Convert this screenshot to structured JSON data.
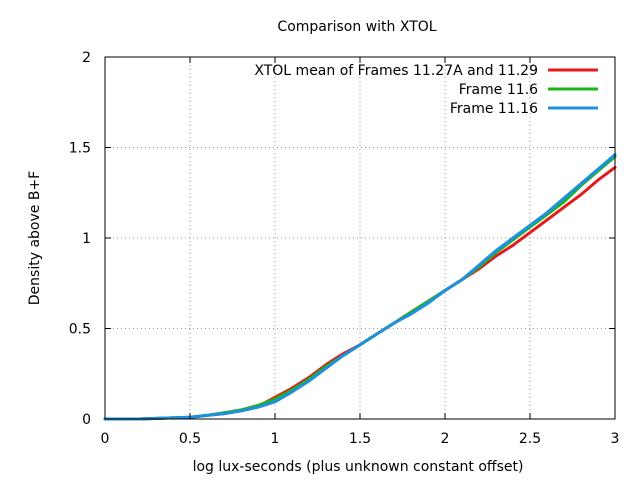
{
  "chart_data": {
    "type": "line",
    "title": "Comparison with XTOL",
    "xlabel": "log lux-seconds (plus unknown constant offset)",
    "ylabel": "Density above B+F",
    "xlim": [
      0,
      3
    ],
    "ylim": [
      0,
      2
    ],
    "x_ticks": [
      "0",
      "0.5",
      "1",
      "1.5",
      "2",
      "2.5",
      "3"
    ],
    "y_ticks": [
      "0",
      "0.5",
      "1",
      "1.5",
      "2"
    ],
    "grid": true,
    "legend_position": "top-right",
    "series": [
      {
        "name": "XTOL mean of Frames 11.27A and 11.29",
        "color": "#e41a1c",
        "x": [
          0,
          0.2,
          0.35,
          0.5,
          0.6,
          0.7,
          0.8,
          0.9,
          1.0,
          1.1,
          1.2,
          1.3,
          1.4,
          1.5,
          1.6,
          1.7,
          1.8,
          1.9,
          2.0,
          2.1,
          2.2,
          2.3,
          2.4,
          2.5,
          2.6,
          2.7,
          2.8,
          2.9,
          3.0
        ],
        "y": [
          0,
          0,
          0.005,
          0.01,
          0.02,
          0.03,
          0.045,
          0.07,
          0.12,
          0.17,
          0.23,
          0.3,
          0.36,
          0.41,
          0.47,
          0.53,
          0.59,
          0.65,
          0.71,
          0.77,
          0.83,
          0.9,
          0.96,
          1.03,
          1.1,
          1.17,
          1.24,
          1.32,
          1.39
        ]
      },
      {
        "name": "Frame 11.6",
        "color": "#19b519",
        "x": [
          0,
          0.2,
          0.35,
          0.5,
          0.6,
          0.7,
          0.8,
          0.9,
          1.0,
          1.1,
          1.2,
          1.3,
          1.4,
          1.5,
          1.6,
          1.7,
          1.8,
          1.9,
          2.0,
          2.1,
          2.2,
          2.3,
          2.4,
          2.5,
          2.6,
          2.7,
          2.8,
          2.9,
          3.0
        ],
        "y": [
          0,
          0,
          0.005,
          0.01,
          0.02,
          0.035,
          0.05,
          0.075,
          0.11,
          0.16,
          0.22,
          0.29,
          0.35,
          0.41,
          0.47,
          0.53,
          0.59,
          0.65,
          0.71,
          0.77,
          0.84,
          0.92,
          0.99,
          1.06,
          1.13,
          1.2,
          1.29,
          1.37,
          1.45
        ]
      },
      {
        "name": "Frame 11.16",
        "color": "#1f8fe0",
        "x": [
          0,
          0.2,
          0.35,
          0.5,
          0.6,
          0.7,
          0.8,
          0.9,
          1.0,
          1.1,
          1.2,
          1.3,
          1.4,
          1.5,
          1.6,
          1.7,
          1.8,
          1.9,
          2.0,
          2.1,
          2.2,
          2.3,
          2.4,
          2.5,
          2.6,
          2.7,
          2.8,
          2.9,
          3.0
        ],
        "y": [
          0,
          0,
          0.005,
          0.01,
          0.02,
          0.03,
          0.045,
          0.065,
          0.095,
          0.15,
          0.21,
          0.28,
          0.35,
          0.41,
          0.47,
          0.53,
          0.58,
          0.64,
          0.71,
          0.77,
          0.85,
          0.93,
          1.0,
          1.07,
          1.14,
          1.22,
          1.3,
          1.38,
          1.46
        ]
      }
    ]
  }
}
